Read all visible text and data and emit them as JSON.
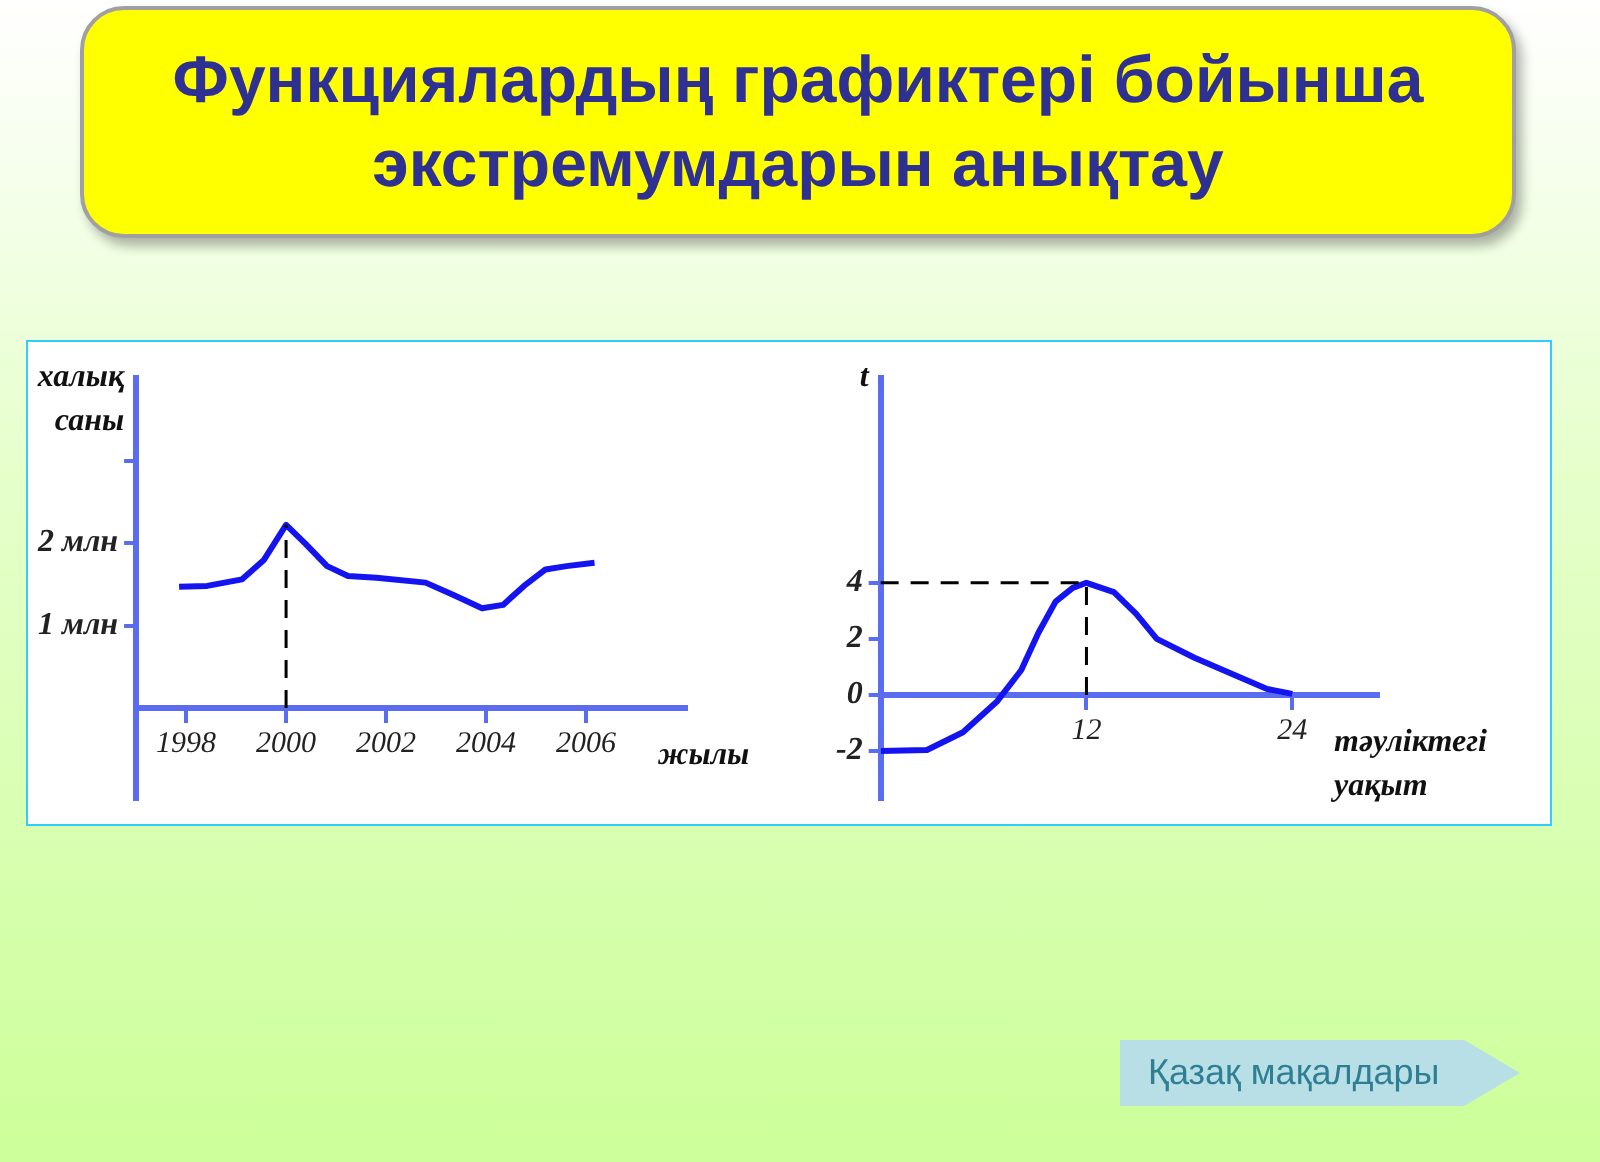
{
  "chart_data": [
    {
      "type": "line",
      "title": "Функциялардың графиктері бойынша экстремумдарын анықтау",
      "ylabel": "халық саны",
      "xlabel": "жылы",
      "x": [
        1997.86,
        1998.42,
        1999.12,
        1999.55,
        2000,
        2000.39,
        2000.82,
        2001.24,
        2001.81,
        2002.79,
        2003.35,
        2003.92,
        2004.34,
        2004.76,
        2005.19,
        2005.61,
        2006.17
      ],
      "series": [
        {
          "color": "#1414f0",
          "values": [
            1.47,
            1.48,
            1.56,
            1.79,
            2.22,
            1.99,
            1.72,
            1.6,
            1.58,
            1.52,
            1.37,
            1.21,
            1.25,
            1.48,
            1.68,
            1.72,
            1.76
          ]
        }
      ],
      "xlim": [
        1997,
        2008
      ],
      "ylim": [
        -1.1,
        4
      ],
      "xticks": [
        1998,
        2000,
        2002,
        2004,
        2006
      ],
      "yticks": [
        {
          "value": 1,
          "label": "1 млн"
        },
        {
          "value": 2,
          "label": "2 млн"
        },
        {
          "value": 3,
          "label": null
        }
      ],
      "ref_lines": [
        {
          "axis": "x",
          "value": 2000,
          "color": "#000000",
          "line_style": "dashed"
        }
      ],
      "grid": false,
      "legend": false,
      "marker": "none"
    },
    {
      "type": "line",
      "ylabel": "t",
      "xlabel": "тәуліктегі уақыт",
      "x": [
        0,
        2.7,
        4.8,
        6.8,
        8.2,
        9.2,
        10.2,
        11.2,
        12,
        13.6,
        14.9,
        16.1,
        18.3,
        20.8,
        22.5,
        24
      ],
      "series": [
        {
          "color": "#1414f0",
          "values": [
            -2,
            -1.96,
            -1.33,
            -0.22,
            0.89,
            2.22,
            3.33,
            3.82,
            4,
            3.67,
            2.89,
            2,
            1.33,
            0.67,
            0.22,
            0.04
          ]
        }
      ],
      "xlim": [
        0,
        29
      ],
      "ylim": [
        -3.7,
        11.3
      ],
      "xticks": [
        12,
        24
      ],
      "yticks": [
        -2,
        0,
        2,
        4
      ],
      "ref_lines": [
        {
          "axis": "x",
          "value": 12,
          "color": "#000000",
          "line_style": "dashed"
        },
        {
          "axis": "y",
          "value": 4,
          "color": "#000000",
          "line_style": "dashed"
        }
      ],
      "annotations": [
        "Қазақ мақалдары"
      ],
      "grid": false,
      "legend": false,
      "marker": "none"
    }
  ]
}
